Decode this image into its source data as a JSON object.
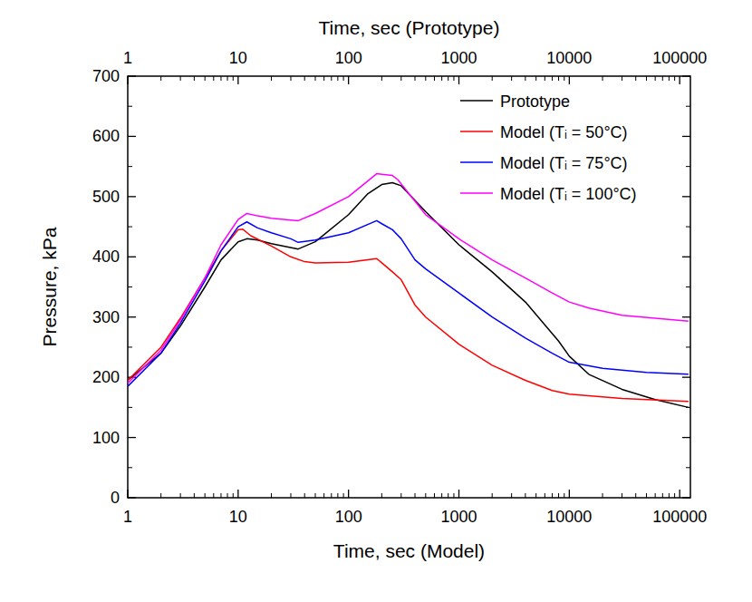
{
  "chart_data": {
    "type": "line",
    "x_label": "Time, sec (Model)",
    "x2_label": "Time, sec (Prototype)",
    "y_label": "Pressure, kPa",
    "log": "x",
    "legend": "top-right",
    "xlim": [
      1,
      125000
    ],
    "xticks": [
      1,
      10,
      100,
      1000,
      10000,
      100000
    ],
    "ylim": [
      0,
      700
    ],
    "yticks": [
      0,
      100,
      200,
      300,
      400,
      500,
      600,
      700
    ],
    "series": [
      {
        "name": "Prototype",
        "color": "#000000",
        "x": [
          1,
          2,
          3,
          5,
          7,
          10,
          12,
          15,
          20,
          35,
          50,
          100,
          150,
          200,
          250,
          300,
          500,
          1000,
          2000,
          4000,
          8000,
          10000,
          15000,
          30000,
          60000,
          120000
        ],
        "values": [
          195,
          240,
          285,
          350,
          395,
          425,
          430,
          428,
          422,
          413,
          425,
          470,
          505,
          520,
          523,
          518,
          475,
          420,
          375,
          325,
          260,
          235,
          205,
          180,
          163,
          150
        ]
      },
      {
        "name": "Model (Tᵢ = 50°C)",
        "color": "#ff0000",
        "x": [
          1,
          2,
          3,
          5,
          7,
          10,
          11,
          13,
          20,
          30,
          40,
          50,
          100,
          180,
          200,
          250,
          300,
          400,
          500,
          1000,
          2000,
          4000,
          7000,
          10000,
          30000,
          120000
        ],
        "values": [
          195,
          250,
          298,
          365,
          410,
          445,
          446,
          435,
          418,
          400,
          392,
          390,
          391,
          397,
          390,
          375,
          362,
          320,
          300,
          255,
          220,
          195,
          178,
          172,
          165,
          160
        ]
      },
      {
        "name": "Model (Tᵢ = 75°C)",
        "color": "#0000ff",
        "x": [
          1,
          2,
          3,
          5,
          7,
          10,
          12,
          15,
          20,
          30,
          35,
          50,
          100,
          180,
          200,
          250,
          300,
          400,
          500,
          1000,
          2000,
          4000,
          7000,
          10000,
          20000,
          50000,
          120000
        ],
        "values": [
          185,
          240,
          290,
          360,
          410,
          450,
          458,
          448,
          440,
          430,
          424,
          428,
          440,
          460,
          455,
          445,
          430,
          395,
          380,
          340,
          300,
          265,
          240,
          225,
          215,
          208,
          205
        ]
      },
      {
        "name": "Model (Tᵢ = 100°C)",
        "color": "#ff00ff",
        "x": [
          1,
          2,
          3,
          5,
          7,
          10,
          12,
          15,
          20,
          35,
          50,
          100,
          180,
          200,
          250,
          280,
          500,
          1000,
          2000,
          4000,
          7000,
          10000,
          15000,
          30000,
          120000
        ],
        "values": [
          190,
          245,
          295,
          365,
          420,
          462,
          472,
          468,
          464,
          460,
          472,
          500,
          538,
          537,
          535,
          528,
          470,
          430,
          395,
          365,
          340,
          325,
          315,
          303,
          293
        ]
      }
    ]
  }
}
